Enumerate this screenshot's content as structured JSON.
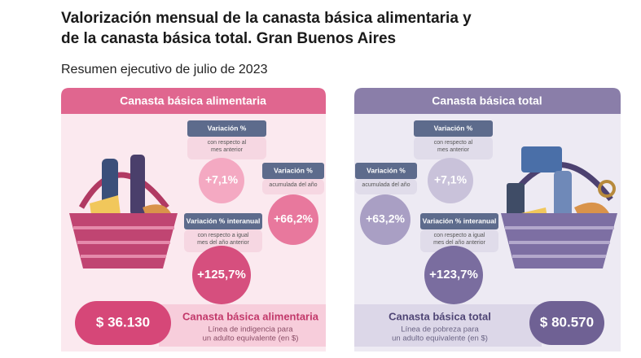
{
  "header": {
    "title_lines": [
      "Valorización mensual de la canasta básica alimentaria y",
      "de la canasta básica total. Gran Buenos Aires"
    ],
    "subtitle": "Resumen ejecutivo de julio de 2023"
  },
  "panels": [
    {
      "title": "Canasta básica alimentaria",
      "monthly": {
        "label": "Variación %",
        "sub": [
          "con respecto al",
          "mes anterior"
        ],
        "value": "+7,1%"
      },
      "accumulated": {
        "label": "Variación %",
        "sub": [
          "acumulada del año"
        ],
        "value": "+66,2%"
      },
      "interannual": {
        "label": "Variación % interanual",
        "sub": [
          "con respecto a igual",
          "mes del año anterior"
        ],
        "value": "+125,7%"
      },
      "amount": "$ 36.130",
      "footer_title": "Canasta básica alimentaria",
      "footer_text": [
        "Línea de indigencia para",
        "un adulto equivalente (en $)"
      ]
    },
    {
      "title": "Canasta básica total",
      "monthly": {
        "label": "Variación %",
        "sub": [
          "con respecto al",
          "mes anterior"
        ],
        "value": "+7,1%"
      },
      "accumulated": {
        "label": "Variación %",
        "sub": [
          "acumulada del año"
        ],
        "value": "+63,2%"
      },
      "interannual": {
        "label": "Variación % interanual",
        "sub": [
          "con respecto a igual",
          "mes del año anterior"
        ],
        "value": "+123,7%"
      },
      "amount": "$ 80.570",
      "footer_title": "Canasta básica total",
      "footer_text": [
        "Línea de pobreza para",
        "un adulto equivalente (en $)"
      ]
    }
  ]
}
